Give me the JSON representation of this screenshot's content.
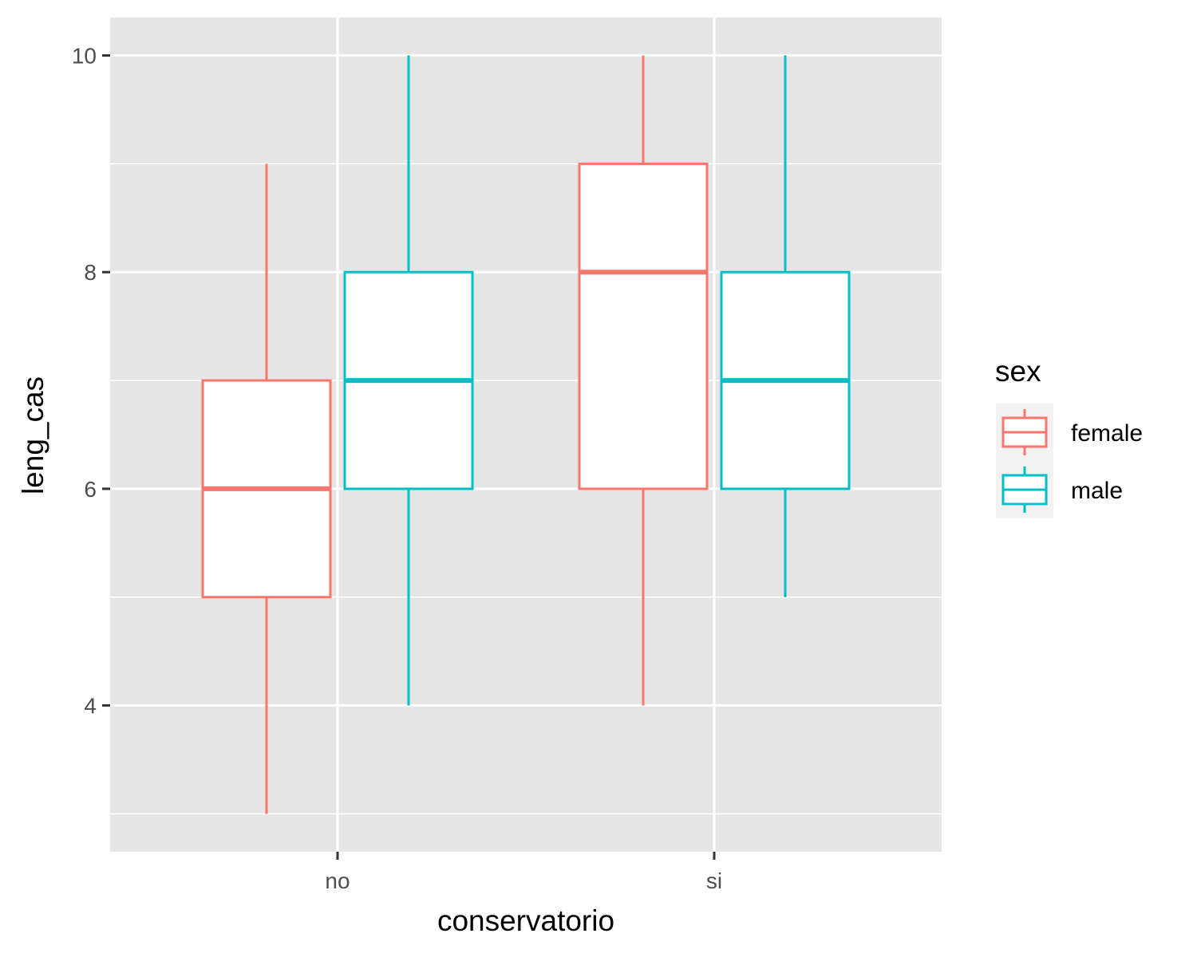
{
  "chart_data": {
    "type": "boxplot",
    "xlabel": "conservatorio",
    "ylabel": "leng_cas",
    "categories": [
      "no",
      "si"
    ],
    "ylim": [
      2.65,
      10.35
    ],
    "yticks": [
      4,
      6,
      8,
      10
    ],
    "grid": true,
    "legend": {
      "title": "sex",
      "position": "right"
    },
    "series": [
      {
        "name": "female",
        "color": "#F8766D",
        "boxes": [
          {
            "category": "no",
            "min": 3,
            "q1": 5,
            "median": 6,
            "q3": 7,
            "max": 9
          },
          {
            "category": "si",
            "min": 4,
            "q1": 6,
            "median": 8,
            "q3": 9,
            "max": 10
          }
        ]
      },
      {
        "name": "male",
        "color": "#00BFC4",
        "boxes": [
          {
            "category": "no",
            "min": 4,
            "q1": 6,
            "median": 7,
            "q3": 8,
            "max": 10
          },
          {
            "category": "si",
            "min": 5,
            "q1": 6,
            "median": 7,
            "q3": 8,
            "max": 10
          }
        ]
      }
    ]
  }
}
